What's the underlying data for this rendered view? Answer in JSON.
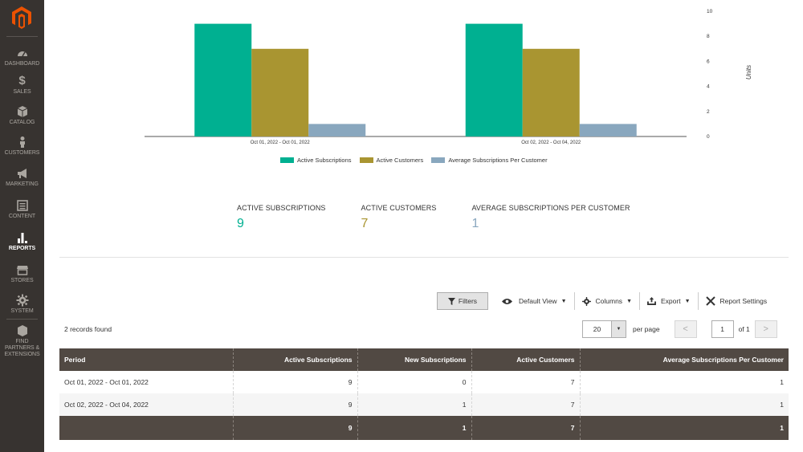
{
  "sidebar": {
    "items": [
      {
        "label": "DASHBOARD",
        "icon": "dashboard-icon"
      },
      {
        "label": "SALES",
        "icon": "dollar-icon"
      },
      {
        "label": "CATALOG",
        "icon": "box-icon"
      },
      {
        "label": "CUSTOMERS",
        "icon": "person-icon"
      },
      {
        "label": "MARKETING",
        "icon": "megaphone-icon"
      },
      {
        "label": "CONTENT",
        "icon": "content-icon"
      },
      {
        "label": "REPORTS",
        "icon": "bar-chart-icon"
      },
      {
        "label": "STORES",
        "icon": "store-icon"
      },
      {
        "label": "SYSTEM",
        "icon": "gear-icon"
      },
      {
        "label": "FIND PARTNERS & EXTENSIONS",
        "icon": "puzzle-icon"
      }
    ],
    "active": "REPORTS"
  },
  "chart_data": {
    "type": "bar",
    "categories": [
      "Oct 01, 2022 - Oct 01, 2022",
      "Oct 02, 2022 - Oct 04, 2022"
    ],
    "series": [
      {
        "name": "Active Subscriptions",
        "values": [
          9,
          9
        ],
        "color": "#00b091"
      },
      {
        "name": "Active Customers",
        "values": [
          7,
          7
        ],
        "color": "#a99531"
      },
      {
        "name": "Average Subscriptions Per Customer",
        "values": [
          1,
          1
        ],
        "color": "#89a7be"
      }
    ],
    "ylabel": "Units",
    "ylim": [
      0,
      10
    ],
    "yticks": [
      0,
      2,
      4,
      6,
      8,
      10
    ],
    "y_axis_side": "right",
    "legend_position": "bottom"
  },
  "totals": [
    {
      "label": "ACTIVE SUBSCRIPTIONS",
      "value": "9",
      "color": "#00b091"
    },
    {
      "label": "ACTIVE CUSTOMERS",
      "value": "7",
      "color": "#a99531"
    },
    {
      "label": "AVERAGE SUBSCRIPTIONS PER CUSTOMER",
      "value": "1",
      "color": "#89a7be"
    }
  ],
  "toolbar": {
    "filters_label": "Filters",
    "default_view_label": "Default View",
    "columns_label": "Columns",
    "export_label": "Export",
    "report_settings_label": "Report Settings"
  },
  "records_found": "2 records found",
  "pager": {
    "per_page_value": "20",
    "per_page_label": "per page",
    "page_value": "1",
    "page_of": "of 1",
    "prev": "<",
    "next": ">"
  },
  "table": {
    "headers": [
      "Period",
      "Active Subscriptions",
      "New Subscriptions",
      "Active Customers",
      "Average Subscriptions Per Customer"
    ],
    "rows": [
      [
        "Oct 01, 2022 - Oct 01, 2022",
        "9",
        "0",
        "7",
        "1"
      ],
      [
        "Oct 02, 2022 - Oct 04, 2022",
        "9",
        "1",
        "7",
        "1"
      ]
    ],
    "totals": [
      "",
      "9",
      "1",
      "7",
      "1"
    ]
  }
}
